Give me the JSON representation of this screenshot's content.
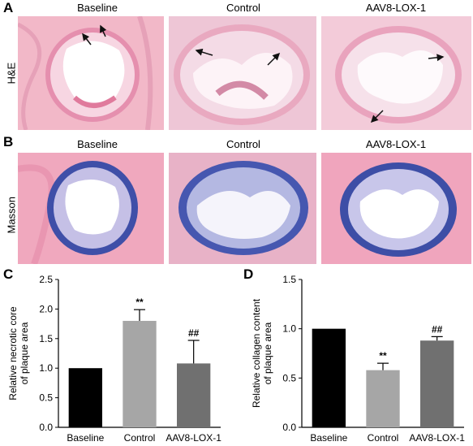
{
  "panels": {
    "A": {
      "letter": "A",
      "row_label": "H&E",
      "titles": [
        "Baseline",
        "Control",
        "AAV8-LOX-1"
      ]
    },
    "B": {
      "letter": "B",
      "row_label": "Masson",
      "titles": [
        "Baseline",
        "Control",
        "AAV8-LOX-1"
      ]
    },
    "C": {
      "letter": "C"
    },
    "D": {
      "letter": "D"
    }
  },
  "colors": {
    "he_bg": "#f2b8c8",
    "he_lumen": "#ffffff",
    "he_wall": "#e07a9c",
    "masson_bg": "#f0a8be",
    "masson_wall": "#3f4fa8",
    "masson_fill": "#b9b8e0",
    "bar_baseline": "#000000",
    "bar_control": "#a6a6a6",
    "bar_aav8": "#707070",
    "arrow": "#111111"
  },
  "chart_data": [
    {
      "type": "bar",
      "categories": [
        "Baseline",
        "Control",
        "AAV8-LOX-1"
      ],
      "values": [
        1.0,
        1.8,
        1.08
      ],
      "errors": [
        0,
        0.19,
        0.39
      ],
      "annotations": [
        "",
        "**",
        "##"
      ],
      "ylabel": "Relative necrotic core\nof plaque area",
      "ylim": [
        0,
        2.5
      ],
      "yticks": [
        "0.0",
        "0.5",
        "1.0",
        "1.5",
        "2.0",
        "2.5"
      ],
      "colors": [
        "#000000",
        "#a6a6a6",
        "#707070"
      ]
    },
    {
      "type": "bar",
      "categories": [
        "Baseline",
        "Control",
        "AAV8-LOX-1"
      ],
      "values": [
        1.0,
        0.58,
        0.88
      ],
      "errors": [
        0,
        0.07,
        0.04
      ],
      "annotations": [
        "",
        "**",
        "##"
      ],
      "ylabel": "Relative collagen content\nof plaque area",
      "ylim": [
        0,
        1.5
      ],
      "yticks": [
        "0.0",
        "0.5",
        "1.0",
        "1.5"
      ],
      "colors": [
        "#000000",
        "#a6a6a6",
        "#707070"
      ]
    }
  ]
}
